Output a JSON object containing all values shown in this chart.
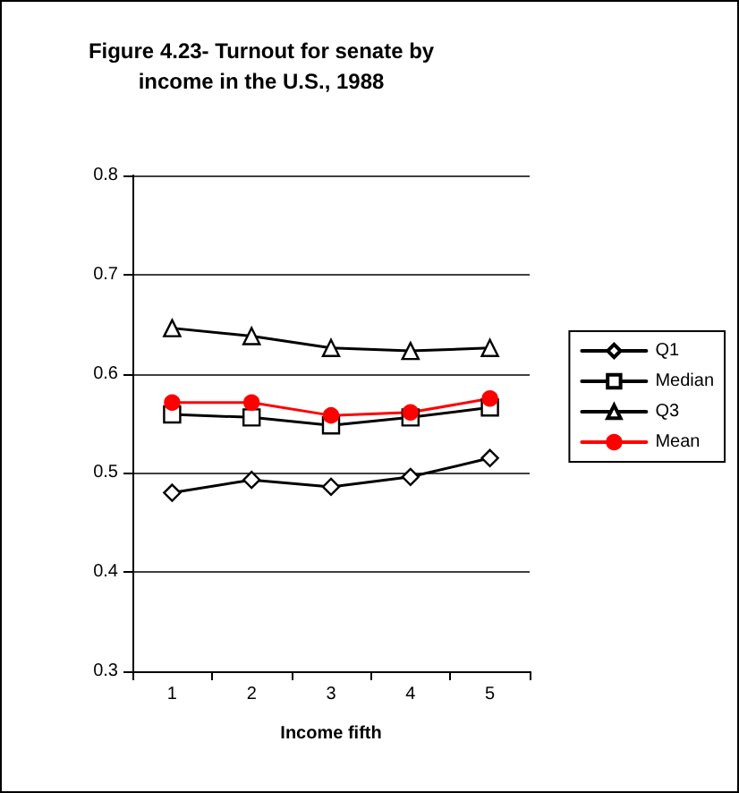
{
  "chart_data": {
    "type": "line",
    "title": "Figure 4.23- Turnout for senate by\nincome in the U.S., 1988",
    "xlabel": "Income fifth",
    "categories": [
      "1",
      "2",
      "3",
      "4",
      "5"
    ],
    "series": [
      {
        "name": "Q1",
        "color": "#000000",
        "marker": "diamond",
        "values": [
          0.48,
          0.493,
          0.486,
          0.496,
          0.515
        ]
      },
      {
        "name": "Median",
        "color": "#000000",
        "marker": "square",
        "values": [
          0.559,
          0.556,
          0.548,
          0.556,
          0.566
        ]
      },
      {
        "name": "Q3",
        "color": "#000000",
        "marker": "triangle",
        "values": [
          0.646,
          0.638,
          0.626,
          0.623,
          0.626
        ]
      },
      {
        "name": "Mean",
        "color": "#ff0000",
        "marker": "circle",
        "values": [
          0.571,
          0.571,
          0.558,
          0.561,
          0.575
        ]
      }
    ],
    "ylim": [
      0.3,
      0.8
    ],
    "yticks": [
      0.3,
      0.4,
      0.5,
      0.6,
      0.7,
      0.8
    ],
    "grid": "y",
    "legend": "right"
  }
}
